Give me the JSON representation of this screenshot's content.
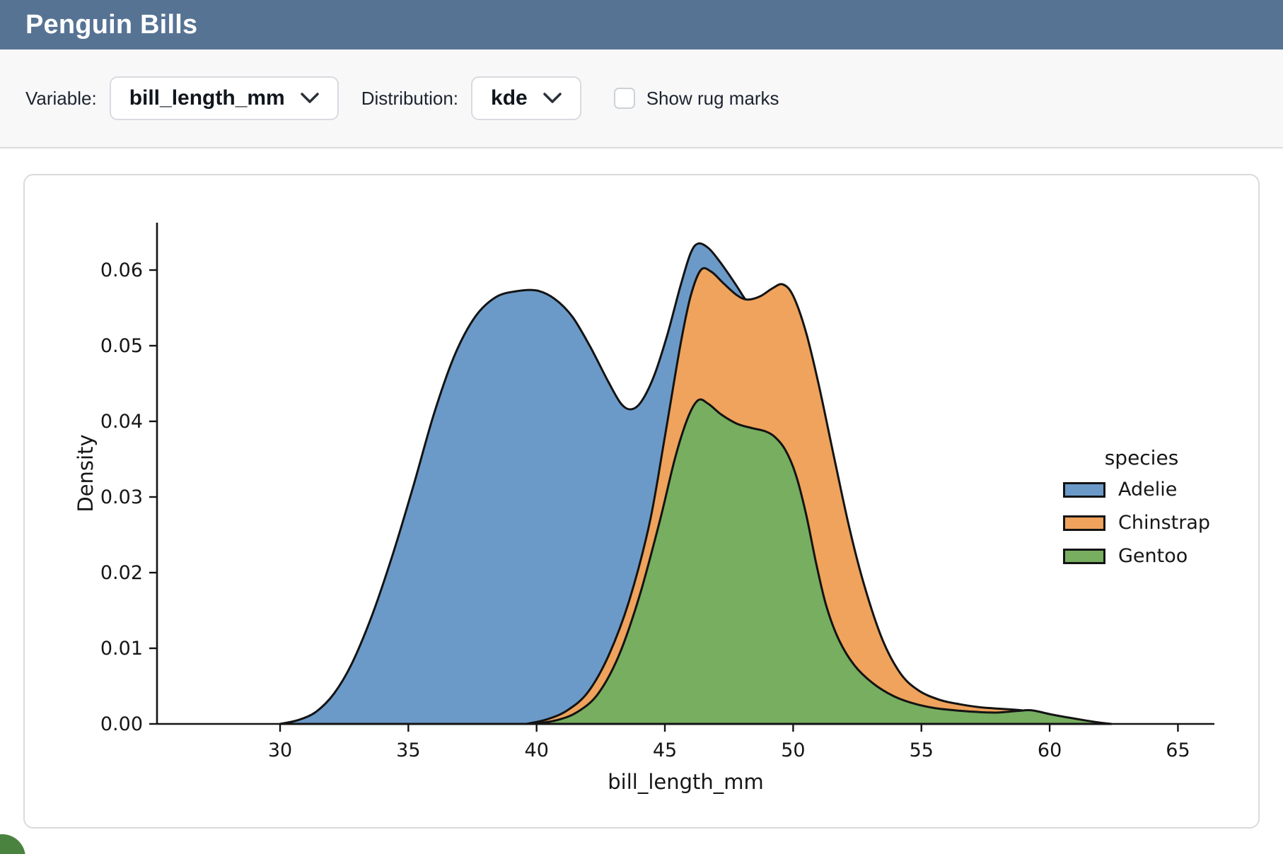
{
  "header": {
    "title": "Penguin Bills"
  },
  "toolbar": {
    "variable_label": "Variable:",
    "variable_value": "bill_length_mm",
    "distribution_label": "Distribution:",
    "distribution_value": "kde",
    "rug_label": "Show rug marks",
    "rug_checked": false
  },
  "icons": {
    "variable_chevron": "chevron-down",
    "distribution_chevron": "chevron-down"
  },
  "colors": {
    "header_bg": "#567394",
    "toolbar_bg": "#f8f8f9",
    "card_border": "#dbdbde",
    "fab_green": "#4a8340",
    "plot_edge": "#131313",
    "adelie": "#6b9ac8",
    "chinstrap": "#efa35c",
    "gentoo": "#77ae60"
  },
  "chart_data": {
    "type": "area",
    "subtype": "kde-density",
    "xlabel": "bill_length_mm",
    "ylabel": "Density",
    "legend_title": "species",
    "legend_position": "center right",
    "grid": false,
    "x_range": [
      25.2,
      66.4
    ],
    "y_range": [
      0,
      0.0663
    ],
    "x_ticks": [
      {
        "value": 30,
        "label": "30"
      },
      {
        "value": 35,
        "label": "35"
      },
      {
        "value": 40,
        "label": "40"
      },
      {
        "value": 45,
        "label": "45"
      },
      {
        "value": 50,
        "label": "50"
      },
      {
        "value": 55,
        "label": "55"
      },
      {
        "value": 60,
        "label": "60"
      },
      {
        "value": 65,
        "label": "65"
      }
    ],
    "y_ticks": [
      {
        "value": 0.0,
        "label": "0.00"
      },
      {
        "value": 0.01,
        "label": "0.01"
      },
      {
        "value": 0.02,
        "label": "0.02"
      },
      {
        "value": 0.03,
        "label": "0.03"
      },
      {
        "value": 0.04,
        "label": "0.04"
      },
      {
        "value": 0.05,
        "label": "0.05"
      },
      {
        "value": 0.06,
        "label": "0.06"
      }
    ],
    "series": [
      {
        "name": "Adelie",
        "color": "#6b9ac8",
        "points": [
          [
            30.0,
            0
          ],
          [
            30.7,
            0.0005
          ],
          [
            31.4,
            0.0016
          ],
          [
            32.1,
            0.004
          ],
          [
            32.8,
            0.008
          ],
          [
            33.6,
            0.0145
          ],
          [
            34.4,
            0.0225
          ],
          [
            35.2,
            0.0315
          ],
          [
            36.0,
            0.041
          ],
          [
            36.8,
            0.0487
          ],
          [
            37.6,
            0.0538
          ],
          [
            38.4,
            0.0564
          ],
          [
            39.2,
            0.0572
          ],
          [
            40.0,
            0.0573
          ],
          [
            40.7,
            0.0562
          ],
          [
            41.4,
            0.0538
          ],
          [
            42.1,
            0.0498
          ],
          [
            42.8,
            0.0452
          ],
          [
            43.3,
            0.0423
          ],
          [
            43.7,
            0.0416
          ],
          [
            44.1,
            0.0427
          ],
          [
            44.6,
            0.0462
          ],
          [
            45.1,
            0.0515
          ],
          [
            45.6,
            0.0578
          ],
          [
            46.0,
            0.0622
          ],
          [
            46.3,
            0.0635
          ],
          [
            46.7,
            0.0629
          ],
          [
            47.1,
            0.0613
          ],
          [
            47.6,
            0.0589
          ],
          [
            48.0,
            0.0568
          ],
          [
            48.5,
            0.0538
          ],
          [
            49.0,
            0.047
          ],
          [
            49.6,
            0.036
          ],
          [
            50.2,
            0.024
          ],
          [
            50.9,
            0.013
          ],
          [
            51.6,
            0.0055
          ],
          [
            52.4,
            0.0018
          ],
          [
            53.2,
            0.0004
          ],
          [
            54.0,
            0
          ]
        ]
      },
      {
        "name": "Chinstrap",
        "color": "#efa35c",
        "points": [
          [
            39.6,
            0
          ],
          [
            40.4,
            0.0006
          ],
          [
            41.2,
            0.0018
          ],
          [
            42.0,
            0.0042
          ],
          [
            42.8,
            0.009
          ],
          [
            43.6,
            0.0162
          ],
          [
            44.4,
            0.0265
          ],
          [
            45.0,
            0.038
          ],
          [
            45.6,
            0.05
          ],
          [
            46.0,
            0.0565
          ],
          [
            46.4,
            0.06
          ],
          [
            46.8,
            0.0598
          ],
          [
            47.3,
            0.0582
          ],
          [
            47.8,
            0.0567
          ],
          [
            48.2,
            0.0561
          ],
          [
            48.7,
            0.0565
          ],
          [
            49.2,
            0.0576
          ],
          [
            49.6,
            0.0581
          ],
          [
            50.0,
            0.0566
          ],
          [
            50.5,
            0.0518
          ],
          [
            51.0,
            0.0448
          ],
          [
            51.6,
            0.0352
          ],
          [
            52.2,
            0.0258
          ],
          [
            52.8,
            0.018
          ],
          [
            53.5,
            0.011
          ],
          [
            54.2,
            0.0066
          ],
          [
            54.9,
            0.0044
          ],
          [
            55.7,
            0.0032
          ],
          [
            56.5,
            0.0026
          ],
          [
            57.3,
            0.0022
          ],
          [
            58.1,
            0.002
          ],
          [
            58.9,
            0.0018
          ],
          [
            59.7,
            0.0013
          ],
          [
            60.6,
            0.0007
          ],
          [
            61.5,
            0.0002
          ],
          [
            62.2,
            0
          ]
        ]
      },
      {
        "name": "Gentoo",
        "color": "#77ae60",
        "points": [
          [
            39.9,
            0
          ],
          [
            40.8,
            0.0005
          ],
          [
            41.6,
            0.0016
          ],
          [
            42.4,
            0.004
          ],
          [
            43.2,
            0.009
          ],
          [
            44.0,
            0.0168
          ],
          [
            44.8,
            0.0268
          ],
          [
            45.4,
            0.0352
          ],
          [
            45.9,
            0.0405
          ],
          [
            46.3,
            0.0428
          ],
          [
            46.7,
            0.0423
          ],
          [
            47.2,
            0.0409
          ],
          [
            47.8,
            0.0397
          ],
          [
            48.4,
            0.0391
          ],
          [
            48.9,
            0.0387
          ],
          [
            49.3,
            0.0379
          ],
          [
            49.7,
            0.0362
          ],
          [
            50.1,
            0.033
          ],
          [
            50.5,
            0.0278
          ],
          [
            50.9,
            0.0212
          ],
          [
            51.3,
            0.0155
          ],
          [
            51.8,
            0.011
          ],
          [
            52.4,
            0.0077
          ],
          [
            53.1,
            0.0054
          ],
          [
            53.9,
            0.0037
          ],
          [
            54.7,
            0.0027
          ],
          [
            55.5,
            0.0021
          ],
          [
            56.3,
            0.0018
          ],
          [
            57.1,
            0.0016
          ],
          [
            57.9,
            0.0015
          ],
          [
            58.7,
            0.0017
          ],
          [
            59.3,
            0.0018
          ],
          [
            60.0,
            0.0013
          ],
          [
            60.8,
            0.0008
          ],
          [
            61.7,
            0.0003
          ],
          [
            62.4,
            0
          ]
        ]
      }
    ]
  }
}
